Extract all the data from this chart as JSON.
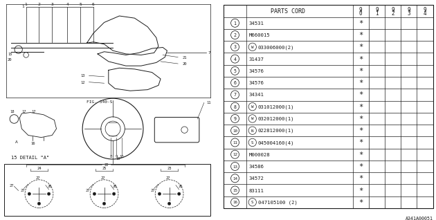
{
  "ref_code": "A341A00051",
  "fig_label": "FIG. 340-5",
  "detail_label": "15 DETAIL \"A\"",
  "table_header": "PARTS CORD",
  "col_headers": [
    "9\n0",
    "9\n1",
    "9\n2",
    "9\n3",
    "9\n4"
  ],
  "parts": [
    {
      "num": 1,
      "code": "34531",
      "prefix": "",
      "cols": [
        true,
        false,
        false,
        false,
        false
      ]
    },
    {
      "num": 2,
      "code": "M660015",
      "prefix": "",
      "cols": [
        true,
        false,
        false,
        false,
        false
      ]
    },
    {
      "num": 3,
      "code": "033006000(2)",
      "prefix": "W",
      "cols": [
        true,
        false,
        false,
        false,
        false
      ]
    },
    {
      "num": 4,
      "code": "31437",
      "prefix": "",
      "cols": [
        true,
        false,
        false,
        false,
        false
      ]
    },
    {
      "num": 5,
      "code": "34576",
      "prefix": "",
      "cols": [
        true,
        false,
        false,
        false,
        false
      ]
    },
    {
      "num": 6,
      "code": "34576",
      "prefix": "",
      "cols": [
        true,
        false,
        false,
        false,
        false
      ]
    },
    {
      "num": 7,
      "code": "34341",
      "prefix": "",
      "cols": [
        true,
        false,
        false,
        false,
        false
      ]
    },
    {
      "num": 8,
      "code": "031012000(1)",
      "prefix": "W",
      "cols": [
        true,
        false,
        false,
        false,
        false
      ]
    },
    {
      "num": 9,
      "code": "032012000(1)",
      "prefix": "W",
      "cols": [
        true,
        false,
        false,
        false,
        false
      ]
    },
    {
      "num": 10,
      "code": "022812000(1)",
      "prefix": "N",
      "cols": [
        true,
        false,
        false,
        false,
        false
      ]
    },
    {
      "num": 11,
      "code": "045004160(4)",
      "prefix": "S",
      "cols": [
        true,
        false,
        false,
        false,
        false
      ]
    },
    {
      "num": 12,
      "code": "M000028",
      "prefix": "",
      "cols": [
        true,
        false,
        false,
        false,
        false
      ]
    },
    {
      "num": 13,
      "code": "34586",
      "prefix": "",
      "cols": [
        true,
        false,
        false,
        false,
        false
      ]
    },
    {
      "num": 14,
      "code": "34572",
      "prefix": "",
      "cols": [
        true,
        false,
        false,
        false,
        false
      ]
    },
    {
      "num": 15,
      "code": "83111",
      "prefix": "",
      "cols": [
        true,
        false,
        false,
        false,
        false
      ]
    },
    {
      "num": 16,
      "code": "047105100 (2)",
      "prefix": "S",
      "cols": [
        true,
        false,
        false,
        false,
        false
      ]
    }
  ],
  "bg_color": "#ffffff",
  "line_color": "#1a1a1a",
  "text_color": "#1a1a1a"
}
